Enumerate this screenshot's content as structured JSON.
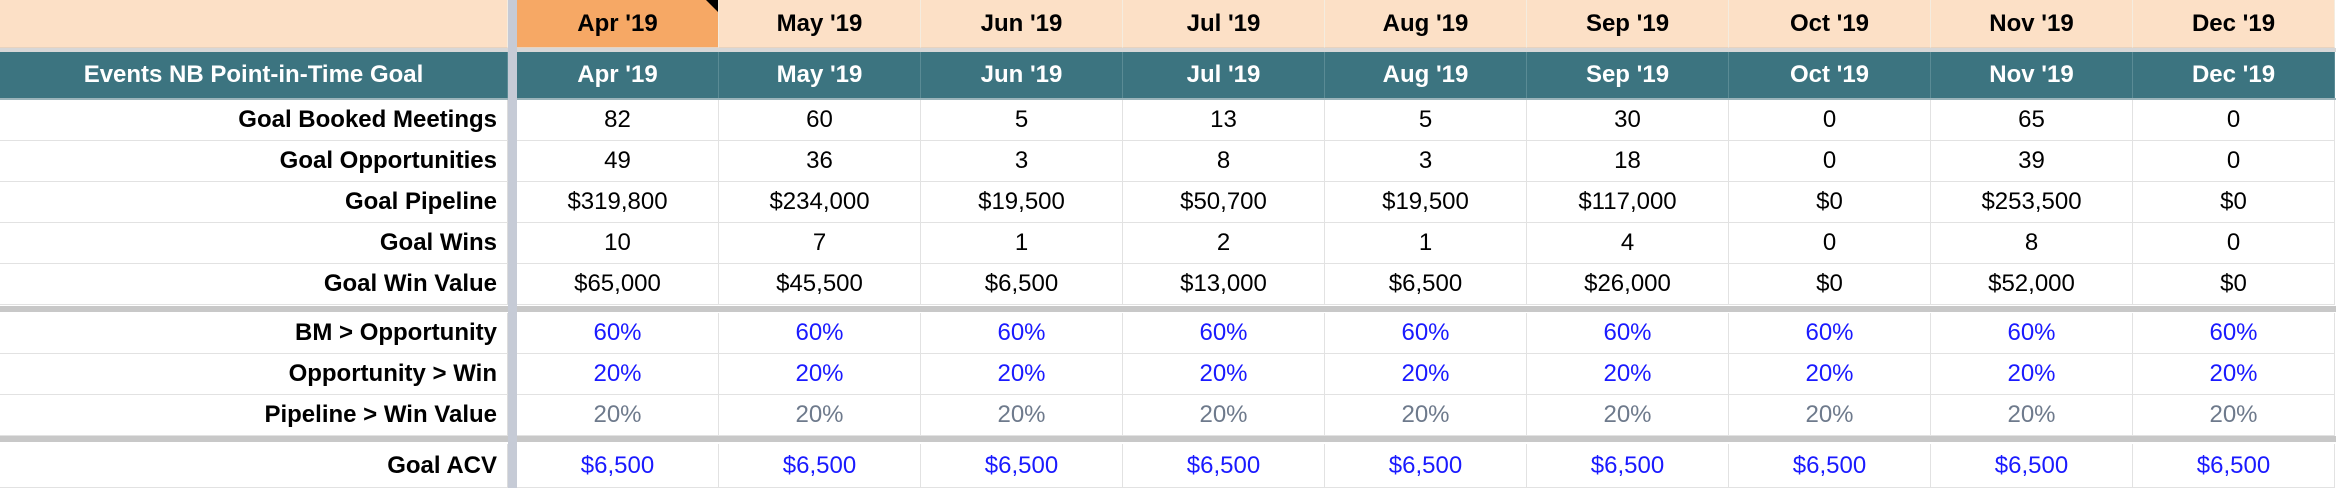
{
  "months": [
    "Apr '19",
    "May '19",
    "Jun '19",
    "Jul '19",
    "Aug '19",
    "Sep '19",
    "Oct '19",
    "Nov '19",
    "Dec '19"
  ],
  "selected_month_index": 0,
  "section_title": "Events NB Point-in-Time Goal",
  "colors": {
    "header_bg": "#fce0c6",
    "header_selected_bg": "#f6a865",
    "title_bar_bg": "#3c7480",
    "rate_text": "#1a1aff",
    "pipeline_rate_text": "#6e7a8c"
  },
  "goal_rows": [
    {
      "label": "Goal Booked Meetings",
      "values": [
        "82",
        "60",
        "5",
        "13",
        "5",
        "30",
        "0",
        "65",
        "0"
      ]
    },
    {
      "label": "Goal Opportunities",
      "values": [
        "49",
        "36",
        "3",
        "8",
        "3",
        "18",
        "0",
        "39",
        "0"
      ]
    },
    {
      "label": "Goal Pipeline",
      "values": [
        "$319,800",
        "$234,000",
        "$19,500",
        "$50,700",
        "$19,500",
        "$117,000",
        "$0",
        "$253,500",
        "$0"
      ]
    },
    {
      "label": "Goal Wins",
      "values": [
        "10",
        "7",
        "1",
        "2",
        "1",
        "4",
        "0",
        "8",
        "0"
      ]
    },
    {
      "label": "Goal Win Value",
      "values": [
        "$65,000",
        "$45,500",
        "$6,500",
        "$13,000",
        "$6,500",
        "$26,000",
        "$0",
        "$52,000",
        "$0"
      ]
    }
  ],
  "rate_rows": [
    {
      "label": "BM > Opportunity",
      "style": "blue",
      "values": [
        "60%",
        "60%",
        "60%",
        "60%",
        "60%",
        "60%",
        "60%",
        "60%",
        "60%"
      ]
    },
    {
      "label": "Opportunity > Win",
      "style": "blue",
      "values": [
        "20%",
        "20%",
        "20%",
        "20%",
        "20%",
        "20%",
        "20%",
        "20%",
        "20%"
      ]
    },
    {
      "label": "Pipeline > Win Value",
      "style": "gray",
      "values": [
        "20%",
        "20%",
        "20%",
        "20%",
        "20%",
        "20%",
        "20%",
        "20%",
        "20%"
      ]
    }
  ],
  "acv_row": {
    "label": "Goal ACV",
    "style": "blue",
    "values": [
      "$6,500",
      "$6,500",
      "$6,500",
      "$6,500",
      "$6,500",
      "$6,500",
      "$6,500",
      "$6,500",
      "$6,500"
    ]
  }
}
